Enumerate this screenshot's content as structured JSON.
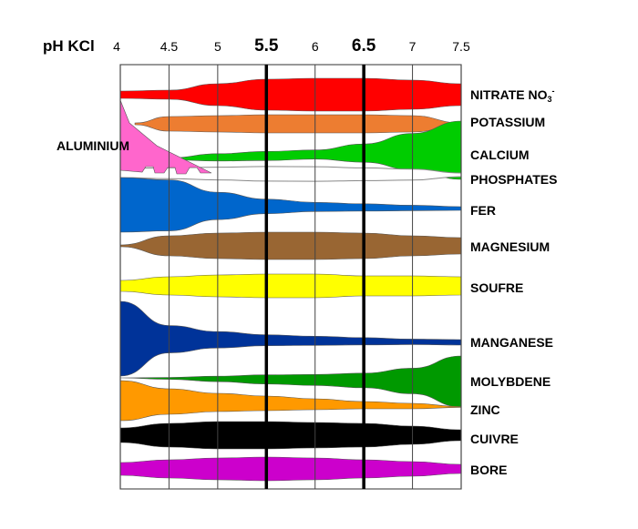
{
  "chart_data": {
    "type": "area",
    "axis_title": "pH KCl",
    "x_ticks": [
      {
        "value": 4,
        "label": "4",
        "major": false
      },
      {
        "value": 4.5,
        "label": "4.5",
        "major": false
      },
      {
        "value": 5,
        "label": "5",
        "major": false
      },
      {
        "value": 5.5,
        "label": "5.5",
        "major": true
      },
      {
        "value": 6,
        "label": "6",
        "major": false
      },
      {
        "value": 6.5,
        "label": "6.5",
        "major": true
      },
      {
        "value": 7,
        "label": "7",
        "major": false
      },
      {
        "value": 7.5,
        "label": "7.5",
        "major": false
      }
    ],
    "xlim": [
      4,
      7.5
    ],
    "grid": true,
    "ph_points": [
      4,
      4.5,
      5,
      5.5,
      6,
      6.5,
      7,
      7.5
    ],
    "series": [
      {
        "name": "NITRATE NO",
        "sub": "3",
        "sup": "-",
        "color": "#ff0000",
        "availability": [
          0.2,
          0.25,
          0.6,
          0.85,
          0.9,
          0.9,
          0.8,
          0.6
        ]
      },
      {
        "name": "POTASSIUM",
        "color": "#ed7d31",
        "availability": [
          0.05,
          0.4,
          0.45,
          0.5,
          0.5,
          0.5,
          0.45,
          0.05
        ]
      },
      {
        "name": "CALCIUM",
        "color": "#00cc00",
        "availability": [
          0,
          0.05,
          0.2,
          0.25,
          0.25,
          0.5,
          1.0,
          1.6
        ]
      },
      {
        "name": "PHOSPHATES",
        "color": "#ffffff",
        "availability": [
          0.25,
          0.3,
          0.35,
          0.4,
          0.4,
          0.35,
          0.3,
          0.1
        ]
      },
      {
        "name": "FER",
        "color": "#0066cc",
        "availability": [
          1.5,
          1.4,
          0.75,
          0.4,
          0.25,
          0.2,
          0.15,
          0.1
        ]
      },
      {
        "name": "MAGNESIUM",
        "color": "#996633",
        "availability": [
          0.05,
          0.55,
          0.7,
          0.75,
          0.75,
          0.7,
          0.55,
          0.45
        ]
      },
      {
        "name": "SOUFRE",
        "color": "#ffff00",
        "availability": [
          0.3,
          0.5,
          0.6,
          0.65,
          0.65,
          0.55,
          0.55,
          0.5
        ]
      },
      {
        "name": "MANGANESE",
        "color": "#003399",
        "availability": [
          2.05,
          0.75,
          0.45,
          0.3,
          0.25,
          0.2,
          0.15,
          0.15
        ]
      },
      {
        "name": "MOLYBDENE",
        "color": "#009900",
        "availability": [
          0,
          0.05,
          0.15,
          0.25,
          0.3,
          0.4,
          0.7,
          1.4
        ]
      },
      {
        "name": "ZINC",
        "color": "#ff9900",
        "availability": [
          1.1,
          0.7,
          0.5,
          0.4,
          0.3,
          0.2,
          0.15,
          0.02
        ]
      },
      {
        "name": "CUIVRE",
        "color": "#000000",
        "availability": [
          0.4,
          0.65,
          0.75,
          0.75,
          0.7,
          0.65,
          0.5,
          0.3
        ]
      },
      {
        "name": "BORE",
        "color": "#cc00cc",
        "availability": [
          0.35,
          0.5,
          0.6,
          0.65,
          0.6,
          0.5,
          0.4,
          0.25
        ]
      }
    ],
    "aluminium": {
      "name": "ALUMINIUM",
      "color": "#ff66cc"
    }
  }
}
